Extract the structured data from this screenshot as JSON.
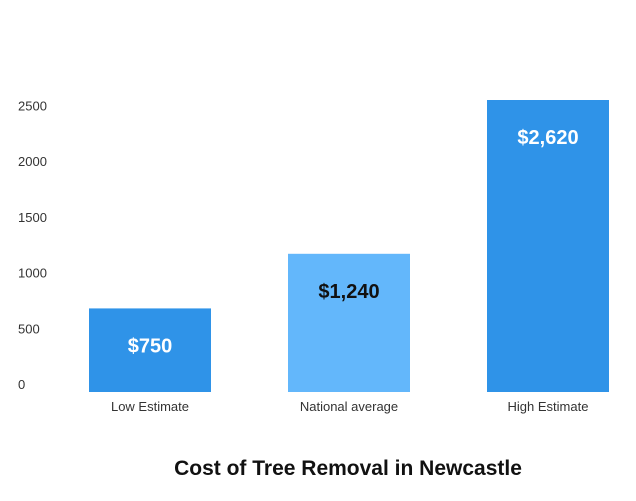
{
  "chart_data": {
    "type": "bar",
    "title": "Cost of Tree Removal in Newcastle",
    "xlabel": "",
    "ylabel": "",
    "categories": [
      "Low Estimate",
      "National average",
      "High Estimate"
    ],
    "values": [
      750,
      1240,
      2620
    ],
    "data_labels": [
      "$750",
      "$1,240",
      "$2,620"
    ],
    "bar_colors": [
      "#2f93e8",
      "#63b7fb",
      "#2f93e8"
    ],
    "label_colors": [
      "#ffffff",
      "#111111",
      "#ffffff"
    ],
    "yticks": [
      0,
      500,
      1000,
      1500,
      2000,
      2500
    ],
    "ylim": [
      0,
      2620
    ],
    "grid": false,
    "legend": "none"
  }
}
